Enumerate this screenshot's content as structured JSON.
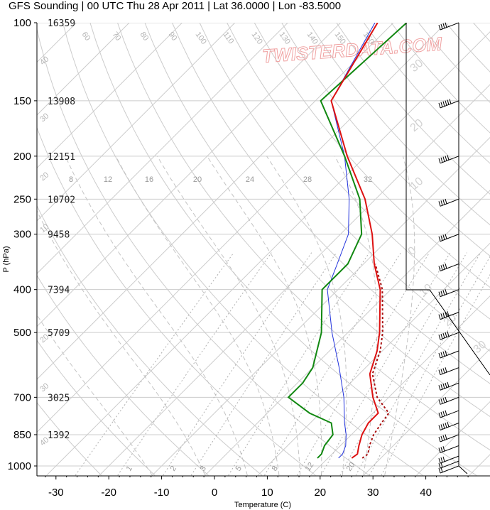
{
  "title": "GFS Sounding | 00 UTC Thu 28 Apr 2011 | Lat 36.0000 | Lon -83.5000",
  "watermark": "TWISTERDATA.COM",
  "colors": {
    "temperature": "#dd1111",
    "dewpoint": "#118811",
    "virtual_temp": "#aa1111",
    "parcel": "#2233dd",
    "grid": "#cccccc",
    "watermark": "#f0a3a3"
  },
  "chart_data": {
    "type": "skew-t",
    "xlabel": "Temperature (C)",
    "ylabel": "P (hPa)",
    "x_ticks": [
      -30,
      -20,
      -10,
      0,
      10,
      20,
      30,
      40
    ],
    "x_range": [
      -34,
      48
    ],
    "pressure_levels": [
      100,
      150,
      200,
      250,
      300,
      400,
      500,
      700,
      850,
      1000
    ],
    "pressure_labels": [
      "100",
      "150",
      "200",
      "250",
      "300",
      "400",
      "500",
      "700",
      "850",
      "1000"
    ],
    "heights_m": [
      "16359",
      "13908",
      "12151",
      "10702",
      "9458",
      "7394",
      "5709",
      "3025",
      "1392"
    ],
    "height_pressures": [
      100,
      150,
      200,
      250,
      300,
      400,
      500,
      700,
      850
    ],
    "temperature": [
      {
        "p": 960,
        "t": 24.5
      },
      {
        "p": 940,
        "t": 24.8
      },
      {
        "p": 900,
        "t": 23.5
      },
      {
        "p": 850,
        "t": 22.0
      },
      {
        "p": 800,
        "t": 21.0
      },
      {
        "p": 760,
        "t": 21.0
      },
      {
        "p": 700,
        "t": 17.0
      },
      {
        "p": 620,
        "t": 12.0
      },
      {
        "p": 550,
        "t": 9.0
      },
      {
        "p": 500,
        "t": 6.0
      },
      {
        "p": 400,
        "t": -2.0
      },
      {
        "p": 350,
        "t": -8.0
      },
      {
        "p": 300,
        "t": -14.0
      },
      {
        "p": 250,
        "t": -22.0
      },
      {
        "p": 200,
        "t": -33.5
      },
      {
        "p": 150,
        "t": -47.0
      },
      {
        "p": 100,
        "t": -53.0
      }
    ],
    "virtual_temperature": [
      {
        "p": 960,
        "t": 26.5
      },
      {
        "p": 940,
        "t": 26.8
      },
      {
        "p": 900,
        "t": 25.5
      },
      {
        "p": 850,
        "t": 24.2
      },
      {
        "p": 800,
        "t": 23.5
      },
      {
        "p": 760,
        "t": 23.0
      },
      {
        "p": 700,
        "t": 17.8
      },
      {
        "p": 620,
        "t": 12.5
      },
      {
        "p": 550,
        "t": 9.6
      },
      {
        "p": 500,
        "t": 6.6
      },
      {
        "p": 400,
        "t": -1.6
      },
      {
        "p": 350,
        "t": -7.8
      }
    ],
    "dewpoint": [
      {
        "p": 960,
        "t": 18.0
      },
      {
        "p": 940,
        "t": 18.0
      },
      {
        "p": 900,
        "t": 17.0
      },
      {
        "p": 850,
        "t": 16.5
      },
      {
        "p": 800,
        "t": 14.0
      },
      {
        "p": 760,
        "t": 8.0
      },
      {
        "p": 700,
        "t": 1.0
      },
      {
        "p": 650,
        "t": 1.0
      },
      {
        "p": 600,
        "t": 0.0
      },
      {
        "p": 500,
        "t": -5.0
      },
      {
        "p": 400,
        "t": -13.0
      },
      {
        "p": 350,
        "t": -13.0
      },
      {
        "p": 300,
        "t": -16.0
      },
      {
        "p": 250,
        "t": -23.0
      },
      {
        "p": 200,
        "t": -34.0
      },
      {
        "p": 150,
        "t": -49.0
      },
      {
        "p": 100,
        "t": -47.5
      }
    ],
    "parcel": [
      {
        "p": 960,
        "t": 22.0
      },
      {
        "p": 940,
        "t": 22.0
      },
      {
        "p": 900,
        "t": 21.0
      },
      {
        "p": 850,
        "t": 19.0
      },
      {
        "p": 800,
        "t": 16.5
      },
      {
        "p": 700,
        "t": 11.5
      },
      {
        "p": 600,
        "t": 5.0
      },
      {
        "p": 500,
        "t": -3.0
      },
      {
        "p": 400,
        "t": -12.0
      },
      {
        "p": 350,
        "t": -15.0
      },
      {
        "p": 300,
        "t": -18.5
      },
      {
        "p": 250,
        "t": -25.0
      },
      {
        "p": 200,
        "t": -34.0
      },
      {
        "p": 150,
        "t": -47.0
      },
      {
        "p": 100,
        "t": -53.5
      }
    ],
    "mixing_ratio_lines": [
      1,
      2,
      3,
      5,
      8,
      12,
      20
    ],
    "mixing_ratio_lines_upper": [
      8,
      12,
      16,
      20,
      24,
      28,
      32
    ],
    "isotherm_labels": [
      60,
      70,
      80,
      90,
      100,
      110,
      120,
      130,
      140,
      150,
      160
    ],
    "dry_adiabat_labels": [
      "40",
      "30",
      "20",
      "10",
      "20",
      "30",
      "40",
      "30",
      "20",
      "10",
      "0",
      "10",
      "20",
      "30"
    ],
    "wind_barbs": [
      {
        "p": 100,
        "knots": 40
      },
      {
        "p": 150,
        "knots": 60
      },
      {
        "p": 200,
        "knots": 45
      },
      {
        "p": 250,
        "knots": 40
      },
      {
        "p": 300,
        "knots": 40
      },
      {
        "p": 350,
        "knots": 35
      },
      {
        "p": 400,
        "knots": 40
      },
      {
        "p": 450,
        "knots": 45
      },
      {
        "p": 500,
        "knots": 50
      },
      {
        "p": 550,
        "knots": 40
      },
      {
        "p": 600,
        "knots": 40
      },
      {
        "p": 650,
        "knots": 45
      },
      {
        "p": 700,
        "knots": 40
      },
      {
        "p": 750,
        "knots": 40
      },
      {
        "p": 800,
        "knots": 45
      },
      {
        "p": 850,
        "knots": 40
      },
      {
        "p": 900,
        "knots": 30
      },
      {
        "p": 950,
        "knots": 25
      },
      {
        "p": 975,
        "knots": 20
      },
      {
        "p": 1000,
        "knots": 15
      }
    ]
  }
}
